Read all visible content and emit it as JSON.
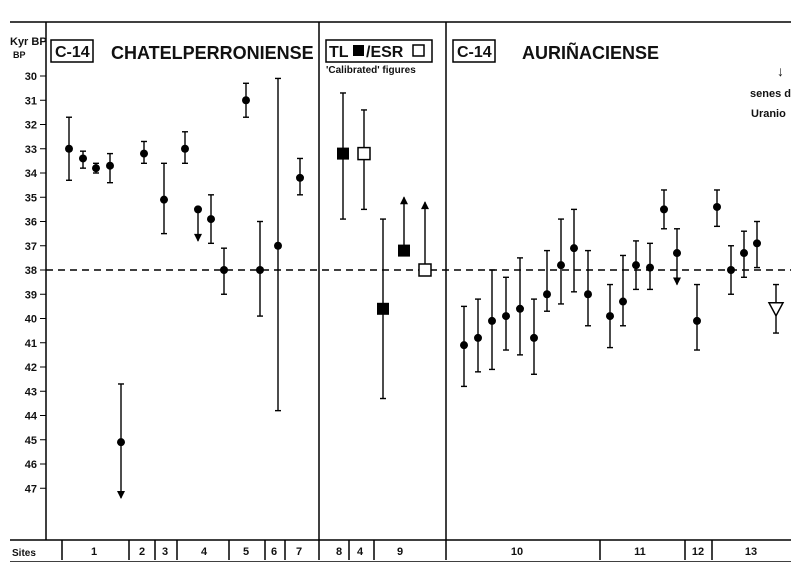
{
  "chart_data": {
    "type": "scatter",
    "ylabel": "Kyr BP",
    "y_axis_unit": "BP",
    "ylim": [
      29,
      47.5
    ],
    "y_inverted": true,
    "y_ticks": [
      30,
      31,
      32,
      33,
      34,
      35,
      36,
      37,
      38,
      39,
      40,
      41,
      42,
      43,
      44,
      45,
      46,
      47
    ],
    "y_tick_labels": [
      "30",
      "31",
      "32",
      "33",
      "34",
      "35",
      "36",
      "37",
      "38",
      "39",
      "40",
      "41",
      "42",
      "43",
      "44",
      "45",
      "46",
      "47"
    ],
    "reference_line": {
      "y": 38,
      "style": "dashed"
    },
    "panels": [
      {
        "id": "p1",
        "method_label": "C-14",
        "title": "CHATELPERRONIENSE",
        "subtitle": ""
      },
      {
        "id": "p2",
        "method_label_pre": "TL",
        "method_label_mid": "/ESR",
        "title": "",
        "subtitle": "'Calibrated' figures"
      },
      {
        "id": "p3",
        "method_label": "C-14",
        "title": "AURIÑACIENSE",
        "subtitle": ""
      }
    ],
    "annotation": {
      "arrow": "↓",
      "line1": "senes de",
      "line2": "Uranio"
    },
    "x_axis_label": "Sites",
    "sites": [
      "1",
      "2",
      "3",
      "4",
      "5",
      "6",
      "7",
      "8",
      "4",
      "9",
      "10",
      "11",
      "12",
      "13"
    ],
    "series": [
      {
        "panel": "p1",
        "site": "1",
        "marker": "circle",
        "points": [
          {
            "y": 33.0,
            "lo": 31.7,
            "hi": 34.3
          },
          {
            "y": 33.4,
            "lo": 33.1,
            "hi": 33.8
          },
          {
            "y": 33.8,
            "lo": 33.6,
            "hi": 34.0
          },
          {
            "y": 33.7,
            "lo": 33.2,
            "hi": 34.4
          },
          {
            "y": 45.1,
            "lo": 42.7,
            "hi": 47.4,
            "arrow": "down"
          }
        ]
      },
      {
        "panel": "p1",
        "site": "2",
        "marker": "circle",
        "points": [
          {
            "y": 33.2,
            "lo": 32.7,
            "hi": 33.6
          }
        ]
      },
      {
        "panel": "p1",
        "site": "3",
        "marker": "circle",
        "points": [
          {
            "y": 35.1,
            "lo": 33.6,
            "hi": 36.5
          }
        ]
      },
      {
        "panel": "p1",
        "site": "4",
        "marker": "circle",
        "points": [
          {
            "y": 33.0,
            "lo": 32.3,
            "hi": 33.6
          },
          {
            "y": 35.5,
            "lo": 35.5,
            "hi": 36.8,
            "arrow": "down"
          },
          {
            "y": 35.9,
            "lo": 34.9,
            "hi": 36.9
          },
          {
            "y": 38.0,
            "lo": 37.1,
            "hi": 39.0
          }
        ]
      },
      {
        "panel": "p1",
        "site": "5",
        "marker": "circle",
        "points": [
          {
            "y": 31.0,
            "lo": 30.3,
            "hi": 31.7
          },
          {
            "y": 38.0,
            "lo": 36.0,
            "hi": 39.9
          }
        ]
      },
      {
        "panel": "p1",
        "site": "6",
        "marker": "circle",
        "points": [
          {
            "y": 37.0,
            "lo": 30.1,
            "hi": 43.8
          }
        ]
      },
      {
        "panel": "p1",
        "site": "7",
        "marker": "circle",
        "points": [
          {
            "y": 34.2,
            "lo": 33.4,
            "hi": 34.9
          }
        ]
      },
      {
        "panel": "p2",
        "site": "8",
        "marker": "square-filled",
        "points": [
          {
            "y": 33.2,
            "lo": 30.7,
            "hi": 35.9
          }
        ]
      },
      {
        "panel": "p2",
        "site": "4",
        "marker": "square-open",
        "points": [
          {
            "y": 33.2,
            "lo": 31.4,
            "hi": 35.5
          }
        ]
      },
      {
        "panel": "p2",
        "site": "9",
        "marker": "square-filled",
        "points": [
          {
            "y": 39.6,
            "lo": 35.9,
            "hi": 43.3
          },
          {
            "y": 37.2,
            "lo": 35.0,
            "hi": 37.2,
            "arrow": "up"
          }
        ]
      },
      {
        "panel": "p2",
        "site": "9",
        "marker": "square-open",
        "points": [
          {
            "y": 38.0,
            "lo": 35.2,
            "hi": 38.0,
            "arrow": "up"
          }
        ]
      },
      {
        "panel": "p3",
        "site": "10",
        "marker": "circle",
        "points": [
          {
            "y": 41.1,
            "lo": 39.5,
            "hi": 42.8
          },
          {
            "y": 40.8,
            "lo": 39.2,
            "hi": 42.2
          },
          {
            "y": 40.1,
            "lo": 38.0,
            "hi": 42.1
          },
          {
            "y": 39.9,
            "lo": 38.3,
            "hi": 41.3
          },
          {
            "y": 39.6,
            "lo": 37.5,
            "hi": 41.5
          },
          {
            "y": 40.8,
            "lo": 39.2,
            "hi": 42.3
          },
          {
            "y": 39.0,
            "lo": 37.2,
            "hi": 39.7
          },
          {
            "y": 37.8,
            "lo": 35.9,
            "hi": 39.4
          },
          {
            "y": 37.1,
            "lo": 35.5,
            "hi": 38.9
          },
          {
            "y": 39.0,
            "lo": 37.2,
            "hi": 40.3
          }
        ]
      },
      {
        "panel": "p3",
        "site": "11",
        "marker": "circle",
        "points": [
          {
            "y": 39.9,
            "lo": 38.6,
            "hi": 41.2
          },
          {
            "y": 39.3,
            "lo": 37.4,
            "hi": 40.3
          },
          {
            "y": 37.8,
            "lo": 36.8,
            "hi": 38.8
          },
          {
            "y": 37.9,
            "lo": 36.9,
            "hi": 38.8
          },
          {
            "y": 35.5,
            "lo": 34.7,
            "hi": 36.3
          },
          {
            "y": 37.3,
            "lo": 36.3,
            "hi": 38.6,
            "arrow": "down"
          }
        ]
      },
      {
        "panel": "p3",
        "site": "12",
        "marker": "circle",
        "points": [
          {
            "y": 40.1,
            "lo": 38.6,
            "hi": 41.3
          }
        ]
      },
      {
        "panel": "p3",
        "site": "13",
        "marker": "circle",
        "points": [
          {
            "y": 35.4,
            "lo": 34.7,
            "hi": 36.2
          },
          {
            "y": 38.0,
            "lo": 37.0,
            "hi": 39.0
          },
          {
            "y": 37.3,
            "lo": 36.4,
            "hi": 38.3
          },
          {
            "y": 36.9,
            "lo": 36.0,
            "hi": 37.9
          }
        ]
      },
      {
        "panel": "p3",
        "site": "13",
        "marker": "triangle-open",
        "points": [
          {
            "y": 39.6,
            "lo": 38.6,
            "hi": 40.6
          }
        ]
      }
    ]
  }
}
